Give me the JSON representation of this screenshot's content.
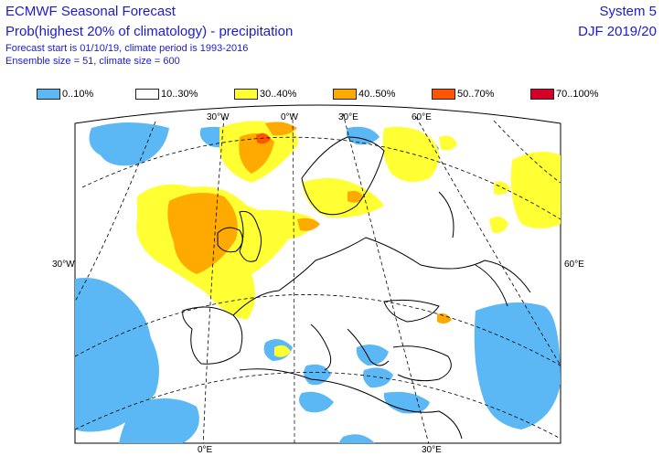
{
  "header": {
    "title": "ECMWF Seasonal Forecast",
    "subtitle": "Prob(highest 20% of climatology) - precipitation",
    "forecast_info": "Forecast start is 01/10/19, climate period is 1993-2016",
    "ensemble_info": "Ensemble size = 51, climate size = 600",
    "system": "System 5",
    "season": "DJF 2019/20"
  },
  "legend": [
    {
      "label": "0..10%",
      "color": "#5cb8f5"
    },
    {
      "label": "10..30%",
      "color": "#ffffff"
    },
    {
      "label": "30..40%",
      "color": "#ffff33"
    },
    {
      "label": "40..50%",
      "color": "#ffaa00"
    },
    {
      "label": "50..70%",
      "color": "#ff5500"
    },
    {
      "label": "70..100%",
      "color": "#d40027"
    }
  ],
  "axes": {
    "top_labels": [
      "30°W",
      "0°W",
      "30°E",
      "60°E"
    ],
    "left_label": "30°W",
    "right_label": "60°E",
    "bottom_labels": [
      "0°E",
      "30°E"
    ]
  }
}
